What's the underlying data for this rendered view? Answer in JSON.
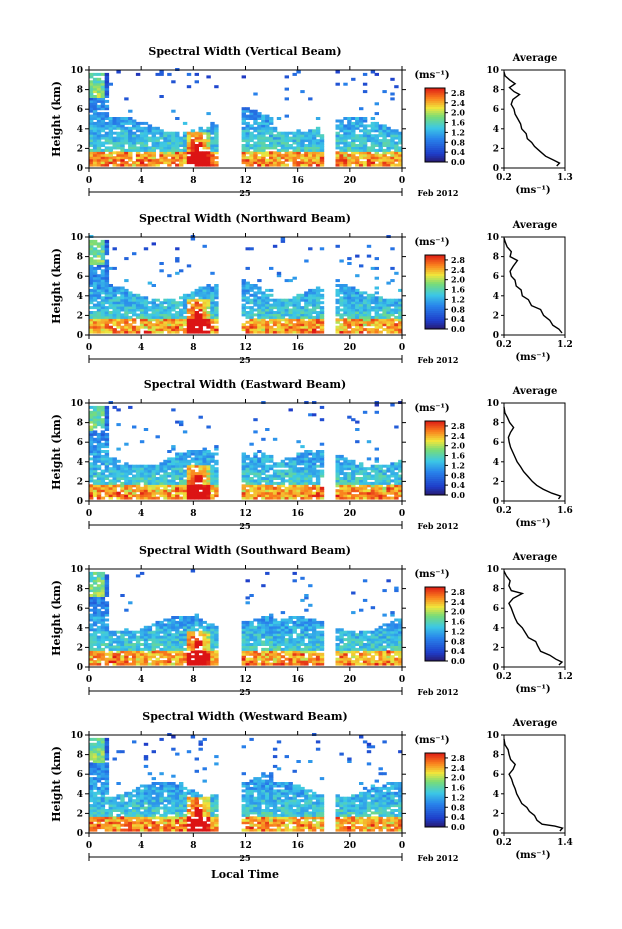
{
  "figure": {
    "bottom_xlabel": "Local Time",
    "date_label": "Feb 2012",
    "day_label": "25"
  },
  "chart_data": [
    {
      "type": "heatmap",
      "title": "Spectral Width (Vertical Beam)",
      "ylabel": "Height (km)",
      "ylim": [
        0,
        10
      ],
      "yticks": [
        "0",
        "2",
        "4",
        "6",
        "8",
        "10"
      ],
      "xlim": [
        0,
        24
      ],
      "xticks": [
        "0",
        "4",
        "8",
        "12",
        "16",
        "20",
        "0"
      ],
      "colorbar": {
        "unit": "(ms⁻¹)",
        "ticks": [
          "0.0",
          "0.4",
          "0.8",
          "1.2",
          "1.6",
          "2.0",
          "2.4",
          "2.8"
        ],
        "range": [
          0,
          3.0
        ]
      },
      "data_gaps_hours": [
        [
          10.0,
          11.6
        ],
        [
          18.3,
          18.8
        ]
      ],
      "average_profile": {
        "title": "Average",
        "xlabel": "(ms⁻¹)",
        "xticks": [
          "0.2",
          "1.3"
        ],
        "xlim": [
          0.2,
          1.3
        ],
        "ylim": [
          0,
          10
        ],
        "points": [
          [
            1.15,
            0.2
          ],
          [
            1.2,
            0.5
          ],
          [
            1.1,
            0.8
          ],
          [
            0.95,
            1.2
          ],
          [
            0.85,
            1.7
          ],
          [
            0.75,
            2.2
          ],
          [
            0.7,
            2.6
          ],
          [
            0.62,
            3.0
          ],
          [
            0.6,
            3.5
          ],
          [
            0.52,
            4.0
          ],
          [
            0.5,
            4.5
          ],
          [
            0.45,
            5.0
          ],
          [
            0.4,
            5.5
          ],
          [
            0.38,
            6.0
          ],
          [
            0.33,
            6.5
          ],
          [
            0.36,
            7.0
          ],
          [
            0.48,
            7.5
          ],
          [
            0.38,
            7.8
          ],
          [
            0.3,
            8.2
          ],
          [
            0.4,
            8.6
          ],
          [
            0.3,
            9.0
          ],
          [
            0.22,
            9.4
          ],
          [
            0.2,
            9.8
          ]
        ]
      }
    },
    {
      "type": "heatmap",
      "title": "Spectral Width (Northward Beam)",
      "ylabel": "Height (km)",
      "ylim": [
        0,
        10
      ],
      "yticks": [
        "0",
        "2",
        "4",
        "6",
        "8",
        "10"
      ],
      "xlim": [
        0,
        24
      ],
      "xticks": [
        "0",
        "4",
        "8",
        "12",
        "16",
        "20",
        "0"
      ],
      "colorbar": {
        "unit": "(ms⁻¹)",
        "ticks": [
          "0.0",
          "0.4",
          "0.8",
          "1.2",
          "1.6",
          "2.0",
          "2.4",
          "2.8"
        ],
        "range": [
          0,
          3.0
        ]
      },
      "data_gaps_hours": [
        [
          10.0,
          11.6
        ],
        [
          18.3,
          18.8
        ]
      ],
      "average_profile": {
        "title": "Average",
        "xlabel": "(ms⁻¹)",
        "xticks": [
          "0.2",
          "1.2"
        ],
        "xlim": [
          0.2,
          1.2
        ],
        "ylim": [
          0,
          10
        ],
        "points": [
          [
            1.15,
            0.2
          ],
          [
            1.1,
            0.6
          ],
          [
            1.0,
            1.0
          ],
          [
            0.95,
            1.5
          ],
          [
            0.85,
            2.0
          ],
          [
            0.8,
            2.6
          ],
          [
            0.65,
            3.0
          ],
          [
            0.6,
            3.6
          ],
          [
            0.5,
            4.0
          ],
          [
            0.48,
            4.6
          ],
          [
            0.4,
            5.0
          ],
          [
            0.38,
            5.6
          ],
          [
            0.32,
            6.0
          ],
          [
            0.3,
            6.5
          ],
          [
            0.35,
            7.0
          ],
          [
            0.42,
            7.6
          ],
          [
            0.3,
            8.0
          ],
          [
            0.32,
            8.5
          ],
          [
            0.25,
            9.0
          ],
          [
            0.22,
            9.5
          ],
          [
            0.2,
            9.9
          ]
        ]
      }
    },
    {
      "type": "heatmap",
      "title": "Spectral Width (Eastward Beam)",
      "ylabel": "Height (km)",
      "ylim": [
        0,
        10
      ],
      "yticks": [
        "0",
        "2",
        "4",
        "6",
        "8",
        "10"
      ],
      "xlim": [
        0,
        24
      ],
      "xticks": [
        "0",
        "4",
        "8",
        "12",
        "16",
        "20",
        "0"
      ],
      "colorbar": {
        "unit": "(ms⁻¹)",
        "ticks": [
          "0.0",
          "0.4",
          "0.8",
          "1.2",
          "1.6",
          "2.0",
          "2.4",
          "2.8"
        ],
        "range": [
          0,
          3.0
        ]
      },
      "data_gaps_hours": [
        [
          10.0,
          11.6
        ],
        [
          18.3,
          18.8
        ]
      ],
      "average_profile": {
        "title": "Average",
        "xlabel": "(ms⁻¹)",
        "xticks": [
          "0.2",
          "1.6"
        ],
        "xlim": [
          0.2,
          1.6
        ],
        "ylim": [
          0,
          10
        ],
        "points": [
          [
            1.45,
            0.2
          ],
          [
            1.5,
            0.5
          ],
          [
            1.3,
            0.8
          ],
          [
            1.1,
            1.2
          ],
          [
            0.95,
            1.6
          ],
          [
            0.85,
            2.0
          ],
          [
            0.75,
            2.5
          ],
          [
            0.65,
            3.0
          ],
          [
            0.58,
            3.5
          ],
          [
            0.5,
            4.0
          ],
          [
            0.45,
            4.5
          ],
          [
            0.4,
            5.0
          ],
          [
            0.35,
            5.5
          ],
          [
            0.32,
            6.0
          ],
          [
            0.3,
            6.5
          ],
          [
            0.35,
            7.0
          ],
          [
            0.42,
            7.5
          ],
          [
            0.33,
            8.0
          ],
          [
            0.28,
            8.5
          ],
          [
            0.22,
            9.0
          ],
          [
            0.2,
            9.6
          ]
        ]
      }
    },
    {
      "type": "heatmap",
      "title": "Spectral Width (Southward Beam)",
      "ylabel": "Height (km)",
      "ylim": [
        0,
        10
      ],
      "yticks": [
        "0",
        "2",
        "4",
        "6",
        "8",
        "10"
      ],
      "xlim": [
        0,
        24
      ],
      "xticks": [
        "0",
        "4",
        "8",
        "12",
        "16",
        "20",
        "0"
      ],
      "colorbar": {
        "unit": "(ms⁻¹)",
        "ticks": [
          "0.0",
          "0.4",
          "0.8",
          "1.2",
          "1.6",
          "2.0",
          "2.4",
          "2.8"
        ],
        "range": [
          0,
          3.0
        ]
      },
      "data_gaps_hours": [
        [
          10.0,
          11.6
        ],
        [
          18.3,
          18.8
        ]
      ],
      "average_profile": {
        "title": "Average",
        "xlabel": "(ms⁻¹)",
        "xticks": [
          "0.2",
          "1.2"
        ],
        "xlim": [
          0.2,
          1.2
        ],
        "ylim": [
          0,
          10
        ],
        "points": [
          [
            1.1,
            0.2
          ],
          [
            1.15,
            0.5
          ],
          [
            1.05,
            0.8
          ],
          [
            0.95,
            1.2
          ],
          [
            0.8,
            1.6
          ],
          [
            0.75,
            2.2
          ],
          [
            0.72,
            2.6
          ],
          [
            0.6,
            3.0
          ],
          [
            0.55,
            3.5
          ],
          [
            0.5,
            4.0
          ],
          [
            0.42,
            4.5
          ],
          [
            0.38,
            5.0
          ],
          [
            0.35,
            5.5
          ],
          [
            0.32,
            6.0
          ],
          [
            0.28,
            6.5
          ],
          [
            0.35,
            7.0
          ],
          [
            0.5,
            7.5
          ],
          [
            0.32,
            7.8
          ],
          [
            0.28,
            8.3
          ],
          [
            0.3,
            8.8
          ],
          [
            0.24,
            9.3
          ],
          [
            0.2,
            9.8
          ]
        ]
      }
    },
    {
      "type": "heatmap",
      "title": "Spectral Width (Westward Beam)",
      "ylabel": "Height (km)",
      "ylim": [
        0,
        10
      ],
      "yticks": [
        "0",
        "2",
        "4",
        "6",
        "8",
        "10"
      ],
      "xlim": [
        0,
        24
      ],
      "xticks": [
        "0",
        "4",
        "8",
        "12",
        "16",
        "20",
        "0"
      ],
      "colorbar": {
        "unit": "(ms⁻¹)",
        "ticks": [
          "0.0",
          "0.4",
          "0.8",
          "1.2",
          "1.6",
          "2.0",
          "2.4",
          "2.8"
        ],
        "range": [
          0,
          3.0
        ]
      },
      "data_gaps_hours": [
        [
          10.0,
          11.6
        ],
        [
          18.3,
          18.8
        ]
      ],
      "average_profile": {
        "title": "Average",
        "xlabel": "(ms⁻¹)",
        "xticks": [
          "0.2",
          "1.4"
        ],
        "xlim": [
          0.2,
          1.4
        ],
        "ylim": [
          0,
          10
        ],
        "points": [
          [
            1.3,
            0.2
          ],
          [
            1.35,
            0.5
          ],
          [
            1.2,
            0.7
          ],
          [
            0.95,
            0.9
          ],
          [
            0.85,
            1.3
          ],
          [
            0.8,
            1.8
          ],
          [
            0.7,
            2.2
          ],
          [
            0.65,
            2.6
          ],
          [
            0.55,
            3.0
          ],
          [
            0.5,
            3.5
          ],
          [
            0.45,
            4.0
          ],
          [
            0.42,
            4.5
          ],
          [
            0.38,
            5.0
          ],
          [
            0.35,
            5.5
          ],
          [
            0.3,
            6.0
          ],
          [
            0.38,
            6.5
          ],
          [
            0.42,
            7.0
          ],
          [
            0.33,
            7.5
          ],
          [
            0.3,
            8.0
          ],
          [
            0.28,
            8.5
          ],
          [
            0.22,
            9.0
          ],
          [
            0.2,
            9.6
          ]
        ]
      }
    }
  ]
}
